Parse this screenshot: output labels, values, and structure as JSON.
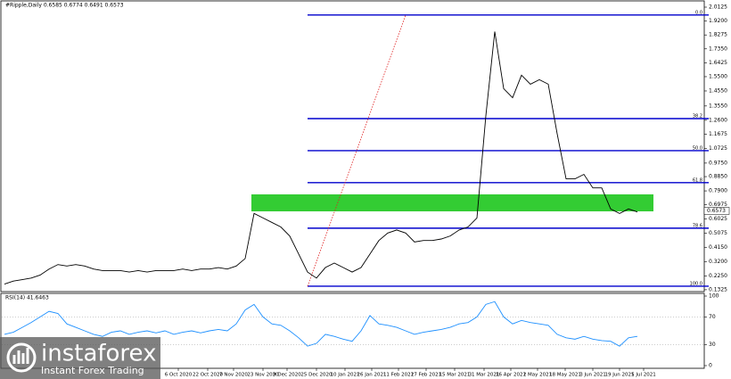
{
  "chart_data": [
    {
      "type": "line",
      "title": "#Ripple,Daily  0.6585 0.6774 0.6491 0.6573",
      "color": "#000000",
      "values": [
        0.17,
        0.19,
        0.2,
        0.21,
        0.23,
        0.27,
        0.3,
        0.29,
        0.3,
        0.29,
        0.27,
        0.26,
        0.26,
        0.26,
        0.25,
        0.26,
        0.25,
        0.26,
        0.26,
        0.26,
        0.27,
        0.26,
        0.27,
        0.27,
        0.28,
        0.27,
        0.29,
        0.34,
        0.64,
        0.61,
        0.58,
        0.55,
        0.49,
        0.37,
        0.25,
        0.21,
        0.28,
        0.31,
        0.28,
        0.25,
        0.28,
        0.37,
        0.46,
        0.51,
        0.53,
        0.51,
        0.45,
        0.46,
        0.46,
        0.47,
        0.49,
        0.53,
        0.55,
        0.61,
        1.29,
        1.85,
        1.47,
        1.41,
        1.56,
        1.5,
        1.53,
        1.5,
        1.17,
        0.87,
        0.87,
        0.9,
        0.81,
        0.81,
        0.67,
        0.64,
        0.67,
        0.65
      ],
      "ylim": [
        0.12,
        2.06
      ],
      "yticks": [
        {
          "value": 2.0125,
          "label": "2.0125"
        },
        {
          "value": 1.92,
          "label": "1.9200"
        },
        {
          "value": 1.8275,
          "label": "1.8275"
        },
        {
          "value": 1.735,
          "label": "1.7350"
        },
        {
          "value": 1.6425,
          "label": "1.6425"
        },
        {
          "value": 1.55,
          "label": "1.5500"
        },
        {
          "value": 1.455,
          "label": "1.4550"
        },
        {
          "value": 1.355,
          "label": "1.3550"
        },
        {
          "value": 1.26,
          "label": "1.2600"
        },
        {
          "value": 1.1675,
          "label": "1.1675"
        },
        {
          "value": 1.0725,
          "label": "1.0725"
        },
        {
          "value": 0.975,
          "label": "0.9750"
        },
        {
          "value": 0.885,
          "label": "0.8850"
        },
        {
          "value": 0.79,
          "label": "0.7900"
        },
        {
          "value": 0.6975,
          "label": "0.6975"
        },
        {
          "value": 0.6025,
          "label": "0.6025"
        },
        {
          "value": 0.5075,
          "label": "0.5075"
        },
        {
          "value": 0.415,
          "label": "0.4150"
        },
        {
          "value": 0.32,
          "label": "0.3200"
        },
        {
          "value": 0.225,
          "label": "0.2250"
        },
        {
          "value": 0.1325,
          "label": "0.1325"
        }
      ],
      "last_price": 0.6573,
      "x_labels": [
        {
          "index": 19.5,
          "label": "6 Oct 2020"
        },
        {
          "index": 22.8,
          "label": "22 Oct 2020"
        },
        {
          "index": 25.7,
          "label": "7 Nov 2020"
        },
        {
          "index": 29,
          "label": "23 Nov 2020"
        },
        {
          "index": 31.7,
          "label": "9 Dec 2020"
        },
        {
          "index": 35,
          "label": "25 Dec 2020"
        },
        {
          "index": 38.2,
          "label": "10 Jan 2021"
        },
        {
          "index": 41.2,
          "label": "26 Jan 2021"
        },
        {
          "index": 44.2,
          "label": "11 Feb 2021"
        },
        {
          "index": 47.3,
          "label": "27 Feb 2021"
        },
        {
          "index": 50.5,
          "label": "15 Mar 2021"
        },
        {
          "index": 53.8,
          "label": "31 Mar 2021"
        },
        {
          "index": 56.8,
          "label": "16 Apr 2021"
        },
        {
          "index": 59.8,
          "label": "2 May 2021"
        },
        {
          "index": 62.9,
          "label": "18 May 2021"
        },
        {
          "index": 66,
          "label": "3 Jun 2021"
        },
        {
          "index": 69,
          "label": "19 Jun 2021"
        },
        {
          "index": 71.7,
          "label": "5 Jul 2021"
        }
      ],
      "fib_color": "#0000cd",
      "fib_from_index": 34,
      "fib_levels": [
        {
          "label": "0.0",
          "value": 1.96
        },
        {
          "label": "38.2",
          "value": 1.271
        },
        {
          "label": "50.0",
          "value": 1.058
        },
        {
          "label": "61.8",
          "value": 0.845
        },
        {
          "label": "78.6",
          "value": 0.542
        },
        {
          "label": "100.0",
          "value": 0.156
        }
      ],
      "zone": {
        "range": [
          0.654,
          0.767
        ],
        "from_index": 27.7,
        "to_index": 72.8,
        "color": "#33cc33"
      },
      "trend_line": {
        "from": [
          34,
          0.156
        ],
        "to": [
          45,
          1.96
        ],
        "color": "#e02020"
      }
    },
    {
      "type": "line",
      "title": "RSI(14) 41.6463",
      "color": "#1e90ff",
      "values": [
        45,
        48,
        55,
        62,
        70,
        78,
        75,
        60,
        55,
        50,
        45,
        42,
        48,
        50,
        45,
        48,
        50,
        47,
        50,
        45,
        48,
        50,
        47,
        50,
        52,
        50,
        60,
        80,
        88,
        70,
        60,
        58,
        50,
        40,
        28,
        32,
        45,
        42,
        38,
        35,
        50,
        72,
        60,
        58,
        55,
        50,
        45,
        48,
        50,
        52,
        55,
        60,
        62,
        70,
        88,
        92,
        70,
        60,
        65,
        62,
        60,
        58,
        45,
        40,
        38,
        42,
        38,
        36,
        35,
        28,
        40,
        42
      ],
      "ylim": [
        0,
        100
      ],
      "yticks": [
        100,
        70,
        30,
        0
      ],
      "levels": [
        70,
        30
      ]
    }
  ],
  "logo": {
    "name": "instaforex",
    "tagline": "Instant Forex Trading"
  }
}
